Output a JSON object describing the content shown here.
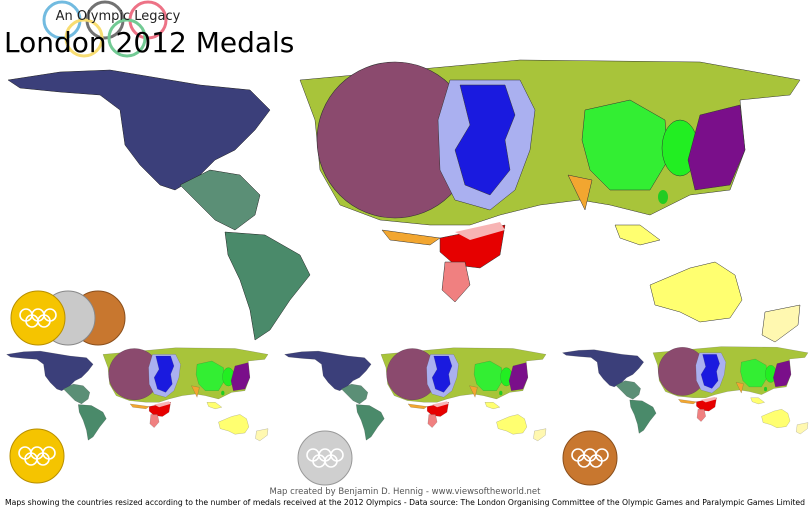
{
  "header": {
    "subtitle": "An Olympic Legacy",
    "title": "London 2012 Medals"
  },
  "footer": {
    "credit": "Map created by Benjamin D. Hennig - www.viewsoftheworld.net",
    "source": "Maps showing the countries resized according to the number of medals received at the 2012 Olympics - Data source: The London Organising Committee of the Olympic Games and Paralympic Games Limited"
  }
}
